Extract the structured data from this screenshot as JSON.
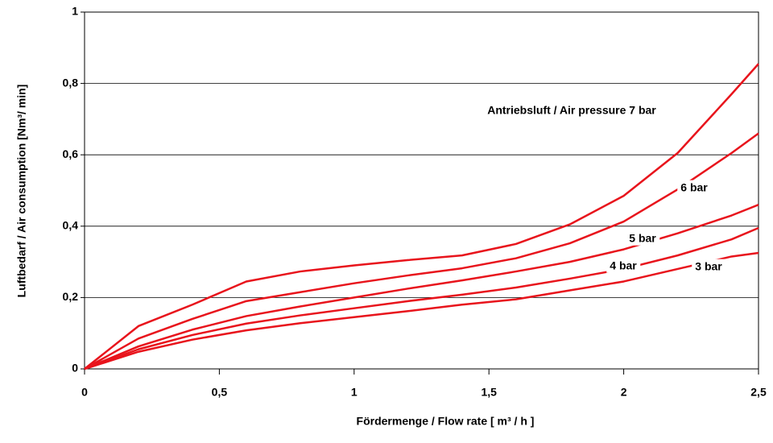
{
  "chart_data": {
    "type": "line",
    "x_label": "Fördermenge / Flow rate [ m³ / h ]",
    "y_label": "Luftbedarf / Air consumption [Nm³/ min]",
    "x": [
      0,
      0.2,
      0.4,
      0.6,
      0.8,
      1.0,
      1.2,
      1.4,
      1.6,
      1.8,
      2.0,
      2.2,
      2.4,
      2.5
    ],
    "series": [
      {
        "name": "Antriebsluft / Air pressure 7 bar",
        "color": "#e8141c",
        "values": [
          0,
          0.12,
          0.18,
          0.245,
          0.273,
          0.29,
          0.305,
          0.318,
          0.35,
          0.405,
          0.485,
          0.605,
          0.77,
          0.855
        ]
      },
      {
        "name": "6 bar",
        "color": "#e8141c",
        "values": [
          0,
          0.085,
          0.14,
          0.19,
          0.215,
          0.24,
          0.262,
          0.282,
          0.31,
          0.352,
          0.413,
          0.503,
          0.605,
          0.66
        ]
      },
      {
        "name": "5 bar",
        "color": "#e8141c",
        "values": [
          0,
          0.063,
          0.11,
          0.148,
          0.175,
          0.2,
          0.225,
          0.248,
          0.273,
          0.3,
          0.335,
          0.38,
          0.43,
          0.46
        ]
      },
      {
        "name": "4 bar",
        "color": "#e8141c",
        "values": [
          0,
          0.055,
          0.095,
          0.127,
          0.15,
          0.17,
          0.19,
          0.208,
          0.228,
          0.253,
          0.28,
          0.318,
          0.363,
          0.395
        ]
      },
      {
        "name": "3 bar",
        "color": "#e8141c",
        "values": [
          0,
          0.048,
          0.082,
          0.108,
          0.128,
          0.145,
          0.162,
          0.18,
          0.195,
          0.22,
          0.245,
          0.28,
          0.315,
          0.325
        ]
      }
    ],
    "xlim": [
      0,
      2.5
    ],
    "xticks": [
      0,
      {
        "value": 0.5,
        "label": "0,5"
      },
      1,
      {
        "value": 1.5,
        "label": "1,5"
      },
      2,
      {
        "value": 2.5,
        "label": "2,5"
      }
    ],
    "ylim": [
      0,
      1
    ],
    "yticks": [
      0,
      {
        "value": 0.2,
        "label": "0,2"
      },
      {
        "value": 0.4,
        "label": "0,4"
      },
      {
        "value": 0.6,
        "label": "0,6"
      },
      {
        "value": 0.8,
        "label": "0,8"
      },
      1
    ],
    "grid": true
  }
}
